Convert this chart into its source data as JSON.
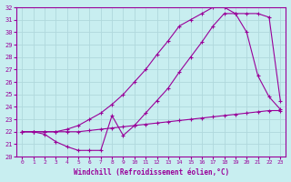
{
  "xlabel": "Windchill (Refroidissement éolien,°C)",
  "xlim": [
    -0.5,
    23.5
  ],
  "ylim": [
    20,
    32
  ],
  "xticks": [
    0,
    1,
    2,
    3,
    4,
    5,
    6,
    7,
    8,
    9,
    10,
    11,
    12,
    13,
    14,
    15,
    16,
    17,
    18,
    19,
    20,
    21,
    22,
    23
  ],
  "yticks": [
    20,
    21,
    22,
    23,
    24,
    25,
    26,
    27,
    28,
    29,
    30,
    31,
    32
  ],
  "bg_color": "#c8eef0",
  "line_color": "#990099",
  "grid_color": "#b0d8dc",
  "line1_x": [
    0,
    1,
    2,
    3,
    4,
    5,
    6,
    7,
    8,
    9,
    10,
    11,
    12,
    13,
    14,
    15,
    16,
    17,
    18,
    19,
    20,
    21,
    22,
    23
  ],
  "line1_y": [
    22.0,
    22.0,
    22.0,
    22.0,
    22.0,
    22.0,
    22.1,
    22.2,
    22.3,
    22.4,
    22.5,
    22.6,
    22.7,
    22.8,
    22.9,
    23.0,
    23.1,
    23.2,
    23.3,
    23.4,
    23.5,
    23.6,
    23.7,
    23.7
  ],
  "line2_x": [
    0,
    1,
    2,
    3,
    4,
    5,
    6,
    7,
    8,
    9,
    10,
    11,
    12,
    13,
    14,
    15,
    16,
    17,
    18,
    19,
    20,
    21,
    22,
    23
  ],
  "line2_y": [
    22.0,
    22.0,
    21.8,
    21.2,
    20.8,
    20.5,
    20.5,
    20.5,
    23.3,
    21.7,
    22.5,
    23.5,
    24.5,
    25.5,
    26.8,
    28.0,
    29.2,
    30.5,
    31.5,
    31.5,
    30.0,
    26.5,
    24.8,
    23.8
  ],
  "line3_x": [
    0,
    1,
    2,
    3,
    4,
    5,
    6,
    7,
    8,
    9,
    10,
    11,
    12,
    13,
    14,
    15,
    16,
    17,
    18,
    19,
    20,
    21,
    22,
    23
  ],
  "line3_y": [
    22.0,
    22.0,
    22.0,
    22.0,
    22.2,
    22.5,
    23.0,
    23.5,
    24.2,
    25.0,
    26.0,
    27.0,
    28.2,
    29.3,
    30.5,
    31.0,
    31.5,
    32.0,
    32.0,
    31.5,
    31.5,
    31.5,
    31.2,
    24.5
  ]
}
